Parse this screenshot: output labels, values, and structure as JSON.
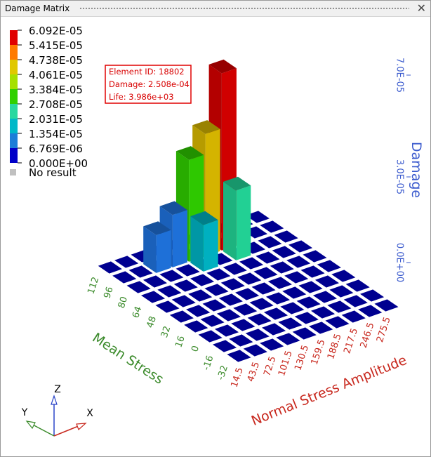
{
  "window": {
    "title": "Damage Matrix",
    "close_glyph": "✕"
  },
  "legend": {
    "labels": [
      "6.092E-05",
      "5.415E-05",
      "4.738E-05",
      "4.061E-05",
      "3.384E-05",
      "2.708E-05",
      "2.031E-05",
      "1.354E-05",
      "6.769E-06",
      "0.000E+00"
    ],
    "colors": [
      "#e00000",
      "#ff7a00",
      "#e0c800",
      "#a6e000",
      "#30d000",
      "#2ad8a0",
      "#00b8c8",
      "#1c7ed8",
      "#0000c8"
    ],
    "no_result": "No result",
    "no_result_color": "#c0c0c0"
  },
  "tooltip": {
    "element_id": "Element ID: 18802",
    "damage": "Damage: 2.508e-04",
    "life": "Life: 3.986e+03",
    "border_color": "#e00000"
  },
  "chart_data": {
    "type": "bar3d",
    "x_label": "Normal Stress Amplitude",
    "x_ticks": [
      "14.5",
      "43.5",
      "72.5",
      "101.5",
      "130.5",
      "159.5",
      "188.5",
      "217.5",
      "246.5",
      "275.5"
    ],
    "y_label": "Mean Stress",
    "y_ticks": [
      "-32",
      "-16",
      "0",
      "16",
      "32",
      "48",
      "64",
      "80",
      "96",
      "112"
    ],
    "z_label": "Damage",
    "z_ticks": [
      "0.0E+00",
      "3.0E-05",
      "7.0E-05"
    ],
    "base_color": "#000090",
    "bars": [
      {
        "x": "188.5",
        "y": "96",
        "value": 6.092e-05,
        "color": "#d00000"
      },
      {
        "x": "159.5",
        "y": "96",
        "value": 4.2e-05,
        "color": "#d4b400"
      },
      {
        "x": "130.5",
        "y": "96",
        "value": 3.5e-05,
        "color": "#2ec800"
      },
      {
        "x": "188.5",
        "y": "80",
        "value": 2.4e-05,
        "color": "#22d094"
      },
      {
        "x": "101.5",
        "y": "96",
        "value": 1.8e-05,
        "color": "#1e70d8"
      },
      {
        "x": "130.5",
        "y": "80",
        "value": 1.6e-05,
        "color": "#00b0c0"
      },
      {
        "x": "72.5",
        "y": "96",
        "value": 1.3e-05,
        "color": "#1e70d8"
      }
    ]
  },
  "axis_colors": {
    "x": "#c8281e",
    "y": "#3a8a2a",
    "z": "#3a5acd"
  },
  "triad": {
    "x": "X",
    "y": "Y",
    "z": "Z"
  }
}
